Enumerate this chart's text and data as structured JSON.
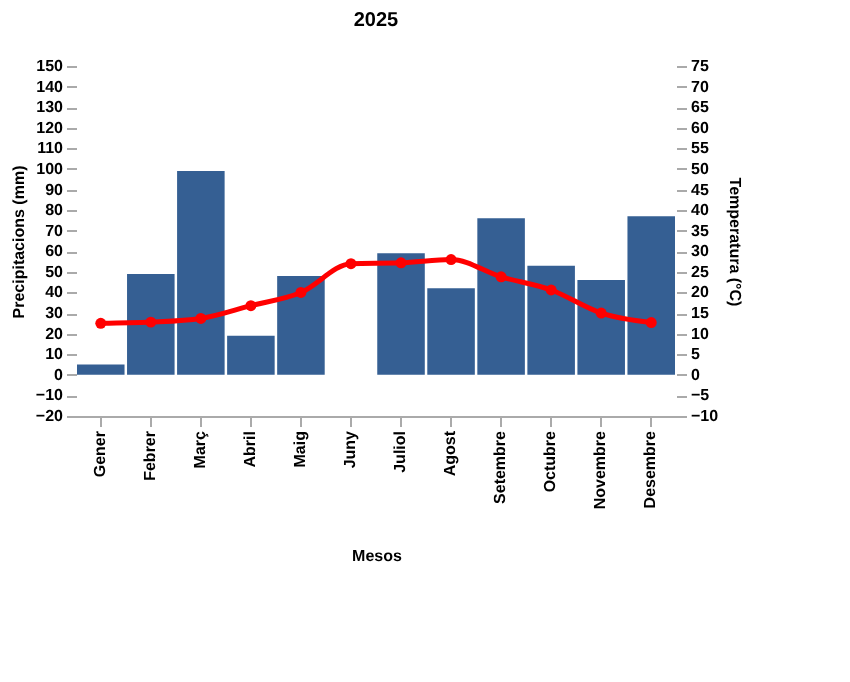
{
  "chart_data": {
    "type": "bar",
    "title": "2025",
    "xlabel": "Mesos",
    "ylabel": "Precipitacions (mm)",
    "y2label": "Temperatura (°C)",
    "categories": [
      "Gener",
      "Febrer",
      "Març",
      "Abril",
      "Maig",
      "Juny",
      "Juliol",
      "Agost",
      "Setembre",
      "Octubre",
      "Novembre",
      "Desembre"
    ],
    "series": [
      {
        "color": "#355f93",
        "values": [
          5,
          49,
          99,
          19,
          48,
          0,
          59,
          42,
          76,
          53,
          46,
          77
        ]
      },
      {
        "type": "line",
        "axis": "y2",
        "color": "#ff0000",
        "marker": "circle",
        "line_style": "solid",
        "values": [
          12.5,
          12.8,
          13.7,
          16.8,
          20,
          27,
          27.2,
          28,
          23.8,
          20.6,
          15,
          12.7
        ]
      }
    ],
    "ylim": [
      -20,
      150
    ],
    "yticks": [
      -20,
      -10,
      0,
      10,
      20,
      30,
      40,
      50,
      60,
      70,
      80,
      90,
      100,
      110,
      120,
      130,
      140,
      150
    ],
    "y2lim": [
      -10,
      75
    ],
    "y2ticks": [
      -10,
      -5,
      0,
      5,
      10,
      15,
      20,
      25,
      30,
      35,
      40,
      45,
      50,
      55,
      60,
      65,
      70,
      75
    ],
    "grid": false
  }
}
